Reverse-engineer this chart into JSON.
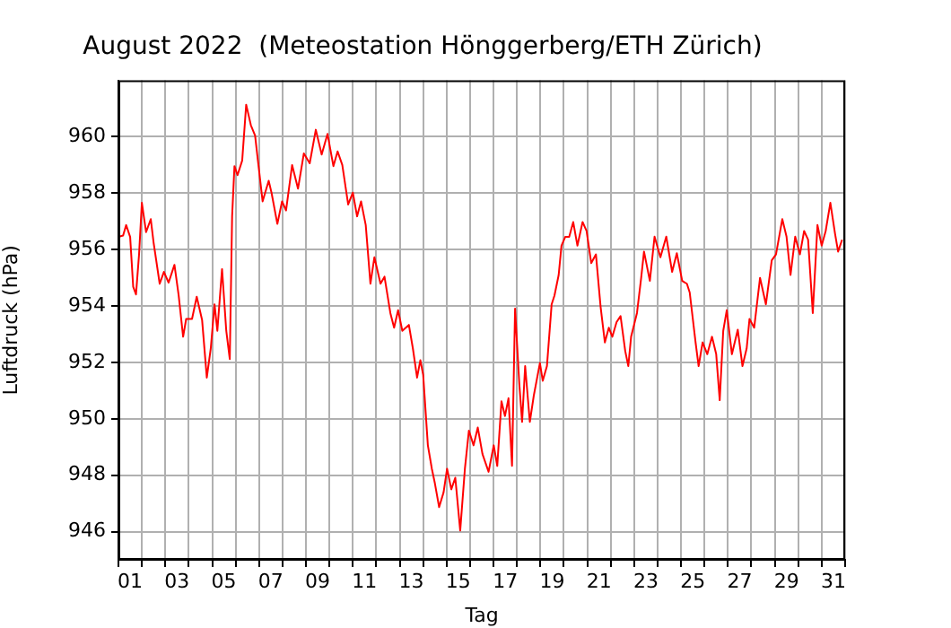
{
  "chart_data": {
    "type": "line",
    "title": "August 2022  (Meteostation Hönggerberg/ETH Zürich)",
    "xlabel": "Tag",
    "ylabel": "Luftdruck (hPa)",
    "xlim": [
      1,
      32
    ],
    "ylim": [
      945,
      962
    ],
    "xticks": [
      {
        "value": 1,
        "label": null
      },
      {
        "value": 1.5,
        "label": "01"
      },
      {
        "value": 2,
        "label": null
      },
      {
        "value": 3,
        "label": null
      },
      {
        "value": 3.5,
        "label": "03"
      },
      {
        "value": 4,
        "label": null
      },
      {
        "value": 5,
        "label": null
      },
      {
        "value": 5.5,
        "label": "05"
      },
      {
        "value": 6,
        "label": null
      },
      {
        "value": 7,
        "label": null
      },
      {
        "value": 7.5,
        "label": "07"
      },
      {
        "value": 8,
        "label": null
      },
      {
        "value": 9,
        "label": null
      },
      {
        "value": 9.5,
        "label": "09"
      },
      {
        "value": 10,
        "label": null
      },
      {
        "value": 11,
        "label": null
      },
      {
        "value": 11.5,
        "label": "11"
      },
      {
        "value": 12,
        "label": null
      },
      {
        "value": 13,
        "label": null
      },
      {
        "value": 13.5,
        "label": "13"
      },
      {
        "value": 14,
        "label": null
      },
      {
        "value": 15,
        "label": null
      },
      {
        "value": 15.5,
        "label": "15"
      },
      {
        "value": 16,
        "label": null
      },
      {
        "value": 17,
        "label": null
      },
      {
        "value": 17.5,
        "label": "17"
      },
      {
        "value": 18,
        "label": null
      },
      {
        "value": 19,
        "label": null
      },
      {
        "value": 19.5,
        "label": "19"
      },
      {
        "value": 20,
        "label": null
      },
      {
        "value": 21,
        "label": null
      },
      {
        "value": 21.5,
        "label": "21"
      },
      {
        "value": 22,
        "label": null
      },
      {
        "value": 23,
        "label": null
      },
      {
        "value": 23.5,
        "label": "23"
      },
      {
        "value": 24,
        "label": null
      },
      {
        "value": 25,
        "label": null
      },
      {
        "value": 25.5,
        "label": "25"
      },
      {
        "value": 26,
        "label": null
      },
      {
        "value": 27,
        "label": null
      },
      {
        "value": 27.5,
        "label": "27"
      },
      {
        "value": 28,
        "label": null
      },
      {
        "value": 29,
        "label": null
      },
      {
        "value": 29.5,
        "label": "29"
      },
      {
        "value": 30,
        "label": null
      },
      {
        "value": 31,
        "label": null
      },
      {
        "value": 31.5,
        "label": "31"
      },
      {
        "value": 32,
        "label": null
      }
    ],
    "yticks": [
      946,
      948,
      950,
      952,
      954,
      956,
      958,
      960
    ],
    "grid": true,
    "legend": false,
    "marker": "none",
    "line_style": "solid",
    "series": [
      {
        "color": "#ff0000",
        "x": [
          1.0,
          1.2,
          1.33,
          1.5,
          1.63,
          1.75,
          1.88,
          2.0,
          2.18,
          2.38,
          2.5,
          2.76,
          2.94,
          3.14,
          3.39,
          3.57,
          3.76,
          3.89,
          4.14,
          4.34,
          4.57,
          4.77,
          4.94,
          5.1,
          5.22,
          5.42,
          5.6,
          5.75,
          5.85,
          5.95,
          6.08,
          6.28,
          6.45,
          6.65,
          6.83,
          6.95,
          7.15,
          7.41,
          7.53,
          7.78,
          7.98,
          8.15,
          8.41,
          8.66,
          8.91,
          9.16,
          9.42,
          9.67,
          9.92,
          10.17,
          10.35,
          10.55,
          10.8,
          11.0,
          11.18,
          11.35,
          11.55,
          11.75,
          11.92,
          12.18,
          12.35,
          12.6,
          12.76,
          12.93,
          13.11,
          13.39,
          13.56,
          13.74,
          13.88,
          14.0,
          14.2,
          14.37,
          14.5,
          14.68,
          14.87,
          15.02,
          15.2,
          15.37,
          15.58,
          15.78,
          15.95,
          16.15,
          16.33,
          16.53,
          16.79,
          17.01,
          17.16,
          17.34,
          17.49,
          17.64,
          17.79,
          17.92,
          18.1,
          18.22,
          18.35,
          18.55,
          18.72,
          18.98,
          19.1,
          19.28,
          19.48,
          19.6,
          19.78,
          19.9,
          20.06,
          20.23,
          20.4,
          20.58,
          20.8,
          20.97,
          21.17,
          21.37,
          21.57,
          21.75,
          21.92,
          22.07,
          22.25,
          22.42,
          22.62,
          22.75,
          22.87,
          23.12,
          23.3,
          23.42,
          23.67,
          23.87,
          24.12,
          24.37,
          24.62,
          24.82,
          25.05,
          25.25,
          25.37,
          25.62,
          25.75,
          25.92,
          26.12,
          26.32,
          26.5,
          26.65,
          26.8,
          26.95,
          27.17,
          27.42,
          27.62,
          27.8,
          27.92,
          28.12,
          28.37,
          28.62,
          28.87,
          29.05,
          29.32,
          29.5,
          29.67,
          29.87,
          30.07,
          30.25,
          30.42,
          30.62,
          30.82,
          31.0,
          31.17,
          31.37,
          31.57,
          31.7,
          31.87
        ],
        "values": [
          956.45,
          956.5,
          956.87,
          956.45,
          954.68,
          954.41,
          955.83,
          957.66,
          956.62,
          957.08,
          956.25,
          954.79,
          955.21,
          954.83,
          955.46,
          954.37,
          952.91,
          953.54,
          953.54,
          954.33,
          953.5,
          951.46,
          952.5,
          954.06,
          953.12,
          955.31,
          953.12,
          952.12,
          957.18,
          958.96,
          958.64,
          959.16,
          961.14,
          960.41,
          960.04,
          959.16,
          957.71,
          958.44,
          958.02,
          956.91,
          957.71,
          957.39,
          959.0,
          958.16,
          959.41,
          959.06,
          960.25,
          959.37,
          960.1,
          958.96,
          959.48,
          959.0,
          957.6,
          958.02,
          957.18,
          957.71,
          956.87,
          954.79,
          955.73,
          954.79,
          955.04,
          953.75,
          953.23,
          953.85,
          953.12,
          953.33,
          952.5,
          951.46,
          952.08,
          951.56,
          949.06,
          948.23,
          947.71,
          946.87,
          947.39,
          948.23,
          947.5,
          947.91,
          946.04,
          948.23,
          949.58,
          949.06,
          949.69,
          948.75,
          948.12,
          949.06,
          948.33,
          950.62,
          950.1,
          950.73,
          948.33,
          953.91,
          951.25,
          949.89,
          951.87,
          949.89,
          950.83,
          951.98,
          951.35,
          951.87,
          954.06,
          954.37,
          955.1,
          956.14,
          956.45,
          956.45,
          956.98,
          956.14,
          956.98,
          956.66,
          955.52,
          955.83,
          953.96,
          952.71,
          953.23,
          952.91,
          953.43,
          953.64,
          952.4,
          951.87,
          952.91,
          953.75,
          955.0,
          955.93,
          954.89,
          956.46,
          955.73,
          956.46,
          955.21,
          955.87,
          954.89,
          954.79,
          954.48,
          952.71,
          951.87,
          952.71,
          952.29,
          952.91,
          952.29,
          950.66,
          953.12,
          953.85,
          952.29,
          953.16,
          951.87,
          952.5,
          953.54,
          953.23,
          955.0,
          954.06,
          955.62,
          955.83,
          957.08,
          956.46,
          955.1,
          956.46,
          955.83,
          956.66,
          956.35,
          953.75,
          956.87,
          956.14,
          956.66,
          957.66,
          956.56,
          955.93,
          956.35
        ]
      }
    ]
  }
}
